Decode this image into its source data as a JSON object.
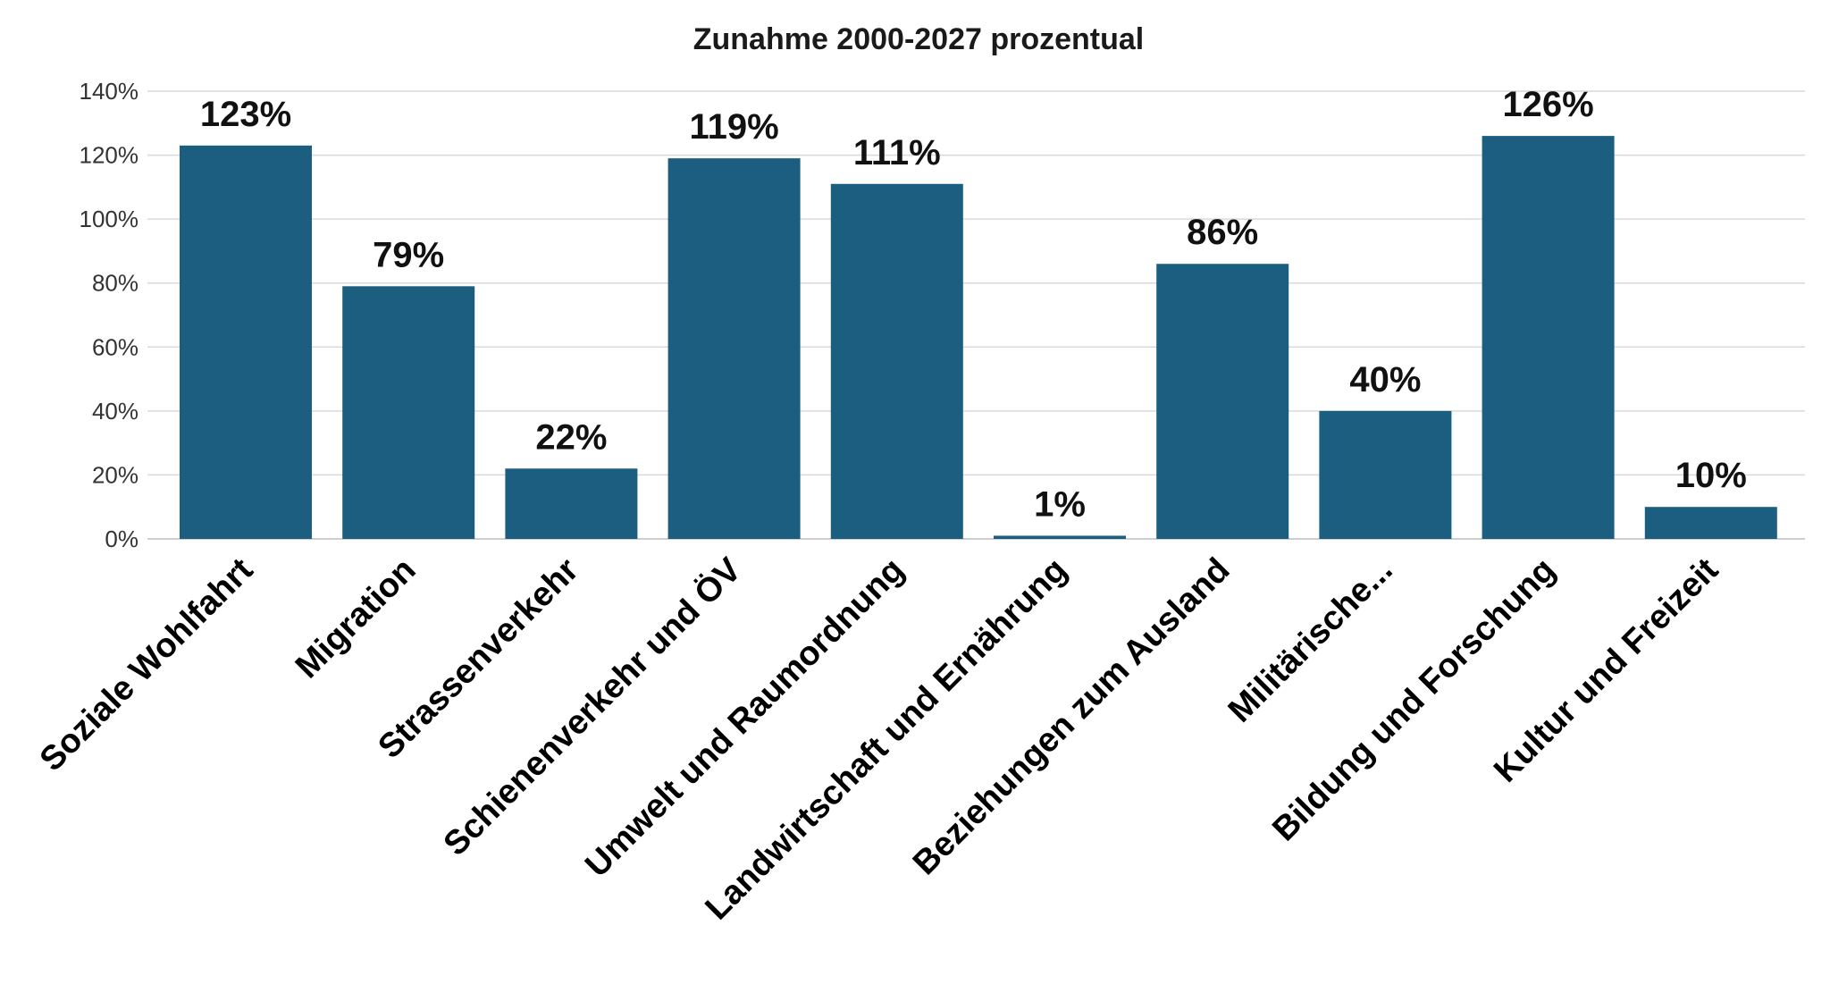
{
  "chart_data": {
    "type": "bar",
    "title": "Zunahme 2000-2027 prozentual",
    "xlabel": "",
    "ylabel": "",
    "categories": [
      "Soziale Wohlfahrt",
      "Migration",
      "Strassenverkehr",
      "Schienenverkehr und ÖV",
      "Umwelt und Raumordnung",
      "Landwirtschaft und Ernährung",
      "Beziehungen zum Ausland",
      "Militärische...",
      "Bildung und Forschung",
      "Kultur und Freizeit"
    ],
    "values": [
      123,
      79,
      22,
      119,
      111,
      1,
      86,
      40,
      126,
      10
    ],
    "data_labels": [
      "123%",
      "79%",
      "22%",
      "119%",
      "111%",
      "1%",
      "86%",
      "40%",
      "126%",
      "10%"
    ],
    "ylim": [
      0,
      140
    ],
    "y_ticks": [
      0,
      20,
      40,
      60,
      80,
      100,
      120,
      140
    ],
    "y_tick_labels": [
      "0%",
      "20%",
      "40%",
      "60%",
      "80%",
      "100%",
      "120%",
      "140%"
    ],
    "grid": true,
    "legend": "none",
    "bar_color": "#1b5e80"
  }
}
